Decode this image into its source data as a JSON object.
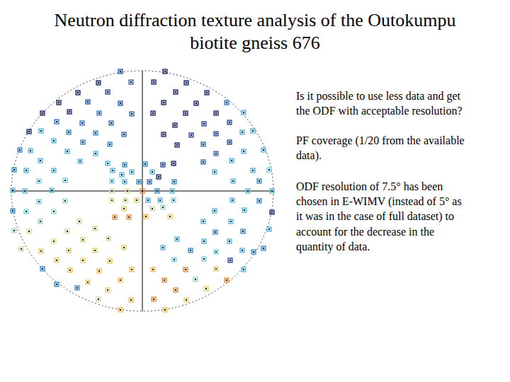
{
  "slide": {
    "title": [
      "Neutron diffraction texture analysis of the Outokumpu",
      "biotite gneiss 676"
    ],
    "paragraphs": [
      [
        "Is it possible to use less data and get",
        "the ODF with acceptable resolution?"
      ],
      [
        "PF coverage (1/20 from the available",
        "data)."
      ],
      [
        "ODF resolution of 7.5° has been",
        "chosen in E-WIMV (instead of 5° as",
        "it was in the case of full dataset) to",
        "account for the decrease in the",
        "quantity of data."
      ]
    ]
  },
  "chart_data": {
    "type": "scatter",
    "marker": "square",
    "grid": true,
    "tick_labels": false,
    "xlim": [
      -185,
      185
    ],
    "ylim": [
      -170,
      170
    ],
    "xticks": [
      0
    ],
    "yticks": [
      0
    ],
    "x": [
      -31,
      32,
      -62,
      -16,
      16,
      62,
      -91,
      -49,
      47,
      91,
      -118,
      -77,
      -31,
      30,
      76,
      119,
      -141,
      -103,
      -61,
      -15,
      15,
      61,
      104,
      143,
      -160,
      -121,
      -85,
      -44,
      46,
      87,
      123,
      156,
      -143,
      -104,
      -66,
      -26,
      30,
      69,
      104,
      141,
      -173,
      -125,
      -84,
      -46,
      49,
      86,
      123,
      171,
      -158,
      -106,
      -66,
      104,
      143,
      -181,
      -144,
      -88,
      86,
      126,
      179,
      -164,
      -125,
      102,
      156,
      -183,
      -146,
      -109,
      128,
      165,
      183,
      -166,
      -128,
      149,
      -183,
      -146,
      -109,
      127,
      165,
      183,
      -164,
      -125,
      102,
      144,
      -181,
      -144,
      -89,
      86,
      125,
      179,
      -160,
      -106,
      -67,
      103,
      142,
      -171,
      -125,
      -84,
      -48,
      49,
      87,
      123,
      171,
      -143,
      -104,
      -67,
      -26,
      29,
      68,
      104,
      141,
      -121,
      -84,
      -46,
      45,
      87,
      124,
      157,
      -141,
      -102,
      -61,
      -15,
      15,
      61,
      104,
      143,
      -121,
      -77,
      -31,
      31,
      75,
      119,
      -92,
      -49,
      47,
      90,
      -62,
      -16,
      16,
      62,
      -31,
      32,
      -49,
      -25,
      4,
      29,
      44,
      -42,
      -15,
      14,
      -29,
      23,
      -43,
      -25,
      -5,
      10,
      45,
      -43,
      -21,
      0,
      21,
      42,
      -43,
      -24,
      -8,
      8,
      25,
      44,
      -26,
      14,
      29,
      -39,
      -19,
      5,
      39
    ],
    "values": [
      169,
      169,
      153,
      154,
      154,
      153,
      139,
      140,
      140,
      139,
      125,
      126,
      124,
      125,
      124,
      125,
      110,
      112,
      110,
      109,
      110,
      110,
      110,
      111,
      84,
      98,
      96,
      96,
      93,
      95,
      97,
      85,
      85,
      83,
      82,
      80,
      80,
      79,
      81,
      83,
      58,
      71,
      69,
      66,
      65,
      66,
      69,
      58,
      57,
      56,
      53,
      53,
      56,
      30,
      43,
      42,
      41,
      43,
      30,
      29,
      29,
      27,
      29,
      1,
      14,
      15,
      14,
      14,
      0,
      0,
      1,
      0,
      -28,
      -15,
      -14,
      -13,
      -14,
      -30,
      -29,
      -29,
      -28,
      -27,
      -56,
      -43,
      -43,
      -43,
      -43,
      -54,
      -57,
      -57,
      -53,
      -58,
      -57,
      -82,
      -71,
      -69,
      -67,
      -68,
      -71,
      -71,
      -81,
      -85,
      -84,
      -84,
      -80,
      -80,
      -84,
      -86,
      -84,
      -98,
      -98,
      -99,
      -97,
      -96,
      -98,
      -86,
      -110,
      -112,
      -113,
      -111,
      -111,
      -111,
      -110,
      -111,
      -132,
      -129,
      -126,
      -126,
      -125,
      -126,
      -137,
      -140,
      -140,
      -138,
      -153,
      -154,
      -153,
      -154,
      -168,
      -168,
      39,
      37,
      38,
      37,
      39,
      29,
      27,
      27,
      23,
      20,
      14,
      13,
      13,
      13,
      13,
      0,
      0,
      0,
      0,
      0,
      -13,
      -13,
      -13,
      -13,
      -13,
      -13,
      -25,
      -25,
      -23,
      -37,
      -37,
      -36,
      -36
    ],
    "colors": [
      "#2b5fa8",
      "#1c2a6e",
      "#1c2a6e",
      "#3a6fb0",
      "#1c2a6e",
      "#1c2a6e",
      "#1c2a6e",
      "#2a4f9a",
      "#1c2a6e",
      "#1c2a6e",
      "#1c2a6e",
      "#2a5fa8",
      "#2a5fa8",
      "#1c2a6e",
      "#1c2a6e",
      "#3a7fc0",
      "#1c2a6e",
      "#1c2a6e",
      "#3a7fc0",
      "#3a6fb0",
      "#1c2a6e",
      "#1c2a6e",
      "#1c2a6e",
      "#5ab8d8",
      "#1c2a6e",
      "#3a7fc0",
      "#3a7fc0",
      "#3a6fb0",
      "#1c2a6e",
      "#2a4f9a",
      "#2a4f9a",
      "#5ab8d8",
      "#5ab8d8",
      "#3a8fc8",
      "#3a8fc8",
      "#3a6fb0",
      "#1c2a6e",
      "#2a4f9a",
      "#2a4f9a",
      "#5ab8d8",
      "#3a8fc8",
      "#5ab8d8",
      "#3a8fc8",
      "#3a8fc8",
      "#1c2a6e",
      "#3a6fb0",
      "#2a4f9a",
      "#5ab8d8",
      "#5ab8d8",
      "#5ab8d8",
      "#5ab8d8",
      "#3a6fb0",
      "#5ab8d8",
      "#3a8fc8",
      "#5ab8d8",
      "#5ab8d8",
      "#3a6fb0",
      "#5ab8d8",
      "#7dd0e0",
      "#5ab8d8",
      "#5ab8d8",
      "#5ab8d8",
      "#5ab8d8",
      "#5ab8d8",
      "#7dd0e0",
      "#7dd0e0",
      "#5ab8d8",
      "#3a8fc8",
      "#5ab8d8",
      "#5ab8d8",
      "#5ab8d8",
      "#5ab8d8",
      "#3a8fc8",
      "#7dd0e0",
      "#a0d8c0",
      "#5ab8d8",
      "#3a8fc8",
      "#1c2a6e",
      "#7dd0e0",
      "#a0d8c0",
      "#5ab8d8",
      "#5ab8d8",
      "#a0d8c0",
      "#a0d8c0",
      "#c8dca0",
      "#5ab8d8",
      "#5ab8d8",
      "#5ab8d8",
      "#c8dca0",
      "#c8dca0",
      "#c8dca0",
      "#3a8fc8",
      "#3a8fc8",
      "#c8dca0",
      "#d8e090",
      "#e0d070",
      "#c8dca0",
      "#5ab8d8",
      "#5ab8d8",
      "#5ab8d8",
      "#3a8fc8",
      "#e0d070",
      "#e0d070",
      "#e0d070",
      "#e0d070",
      "#5ab8d8",
      "#3a8fc8",
      "#7dd0e0",
      "#5ab8d8",
      "#e0d070",
      "#f0d060",
      "#e8c860",
      "#7dd0e0",
      "#7dd0e0",
      "#2a4f9a",
      "#3a8fc8",
      "#3a8fc8",
      "#f0c050",
      "#f0c050",
      "#f0c050",
      "#f0c050",
      "#e09040",
      "#e0d070",
      "#5ab8d8",
      "#3a8fc8",
      "#e0d070",
      "#f0c050",
      "#e09040",
      "#a0d8c0",
      "#e09040",
      "#3a8fc8",
      "#e0d070",
      "#e09040",
      "#e0d070",
      "#c8dca0",
      "#f0c050",
      "#e09040",
      "#e0d070",
      "#f0c050",
      "#f0c050",
      "#5ab8d8",
      "#3a8fc8",
      "#3a8fc8",
      "#2a4f9a",
      "#1c2a6e",
      "#5ab8d8",
      "#5ab8d8",
      "#5ab8d8",
      "#5ab8d8",
      "#1c2a6e",
      "#7dd0e0",
      "#5ab8d8",
      "#3a8fc8",
      "#3a6fb0",
      "#3a8fc8",
      "#c8dca0",
      "#d8e090",
      "#e09040",
      "#3a8fc8",
      "#5ab8d8",
      "#d8e090",
      "#d8e090",
      "#e0d070",
      "#5ab8d8",
      "#5ab8d8",
      "#7dd0e0",
      "#e0d070",
      "#c8dca0",
      "#a0d8c0",
      "#e09040",
      "#e09040",
      "#f0c050",
      "#e0d070"
    ]
  }
}
